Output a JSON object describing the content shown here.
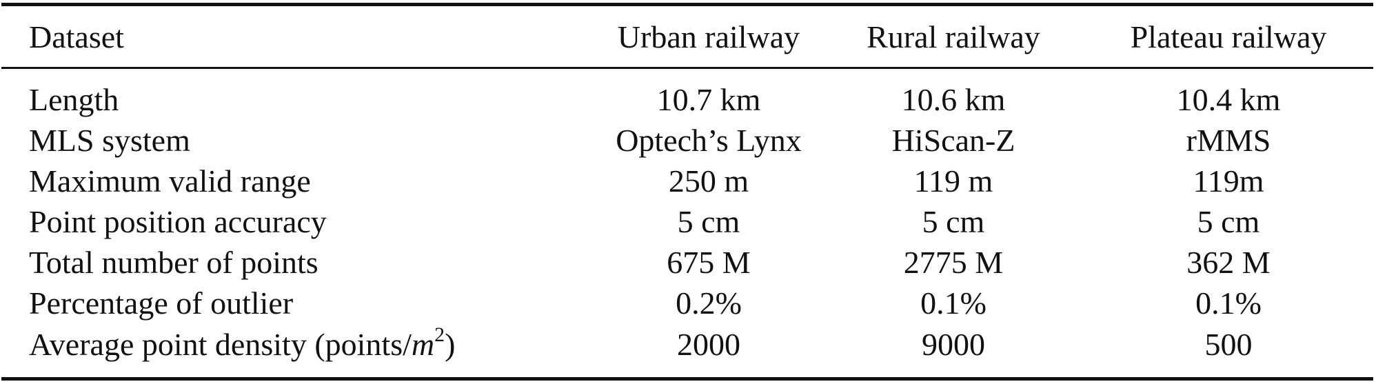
{
  "table": {
    "headers": [
      "Dataset",
      "Urban railway",
      "Rural railway",
      "Plateau railway"
    ],
    "rows": [
      [
        "Length",
        "10.7 km",
        "10.6 km",
        "10.4 km"
      ],
      [
        "MLS system",
        "Optech’s Lynx",
        "HiScan-Z",
        "rMMS"
      ],
      [
        "Maximum valid range",
        "250 m",
        "119 m",
        "119m"
      ],
      [
        "Point position accuracy",
        "5 cm",
        "5 cm",
        "5 cm"
      ],
      [
        "Total number of points",
        "675 M",
        "2775 M",
        "362 M"
      ],
      [
        "Percentage of outlier",
        "0.2%",
        "0.1%",
        "0.1%"
      ],
      [
        "Average point density (points/m²)",
        "2000",
        "9000",
        "500"
      ]
    ],
    "density_label": {
      "prefix": "Average point density (points/",
      "var": "m",
      "exp": "2",
      "suffix": ")"
    }
  }
}
